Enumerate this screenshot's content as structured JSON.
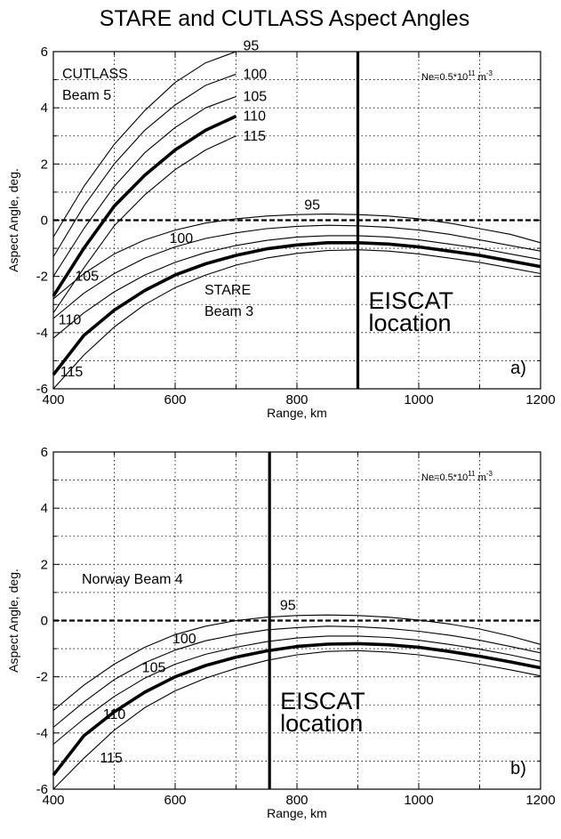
{
  "figure": {
    "title": "STARE and CUTLASS Aspect Angles"
  },
  "chart_data": [
    {
      "type": "line",
      "panel": "a)",
      "xlabel": "Range, km",
      "ylabel": "Aspect Angle, deg.",
      "xlim": [
        400,
        1200
      ],
      "ylim": [
        -6,
        6
      ],
      "xticks": [
        400,
        600,
        800,
        1000,
        1200
      ],
      "yticks": [
        -6,
        -4,
        -2,
        0,
        2,
        4,
        6
      ],
      "grid": true,
      "annotations": {
        "ne": "Ne=0.5*10",
        "ne_exp": "11",
        "ne_unit": "m",
        "ne_unit_exp": "-3",
        "beam_top_line1": "CUTLASS",
        "beam_top_line2": "Beam 5",
        "beam_bottom_line1": "STARE",
        "beam_bottom_line2": "Beam 3",
        "eiscat_line1": "EISCAT",
        "eiscat_line2": "location",
        "panel_label": "a)"
      },
      "eiscat_range": 900,
      "zero_line": 0,
      "series": [
        {
          "name": "95",
          "group": "cutlass",
          "x": [
            400,
            450,
            500,
            550,
            600,
            650,
            700
          ],
          "y": [
            -0.6,
            1.2,
            2.7,
            3.9,
            4.9,
            5.6,
            6.2
          ]
        },
        {
          "name": "100",
          "group": "cutlass",
          "x": [
            400,
            450,
            500,
            550,
            600,
            650,
            700
          ],
          "y": [
            -1.3,
            0.5,
            2.0,
            3.2,
            4.1,
            4.8,
            5.2
          ]
        },
        {
          "name": "105",
          "group": "cutlass",
          "x": [
            400,
            450,
            500,
            550,
            600,
            650,
            700
          ],
          "y": [
            -2.0,
            -0.3,
            1.2,
            2.4,
            3.3,
            4.0,
            4.4
          ]
        },
        {
          "name": "110",
          "group": "cutlass",
          "x": [
            400,
            450,
            500,
            550,
            600,
            650,
            700
          ],
          "y": [
            -2.7,
            -1.0,
            0.5,
            1.6,
            2.5,
            3.2,
            3.7
          ]
        },
        {
          "name": "115",
          "group": "cutlass",
          "x": [
            400,
            450,
            500,
            550,
            600,
            650,
            700
          ],
          "y": [
            -3.3,
            -1.7,
            -0.2,
            0.9,
            1.8,
            2.5,
            3.0
          ]
        },
        {
          "name": "95",
          "group": "stare",
          "x": [
            400,
            450,
            500,
            550,
            600,
            650,
            700,
            750,
            800,
            850,
            900,
            950,
            1000,
            1050,
            1100,
            1150,
            1200
          ],
          "y": [
            -2.8,
            -1.9,
            -1.2,
            -0.7,
            -0.35,
            -0.1,
            0.05,
            0.15,
            0.2,
            0.22,
            0.2,
            0.15,
            0.05,
            -0.1,
            -0.3,
            -0.5,
            -0.8
          ]
        },
        {
          "name": "100",
          "group": "stare",
          "x": [
            400,
            450,
            500,
            550,
            600,
            650,
            700,
            750,
            800,
            850,
            900,
            950,
            1000,
            1050,
            1100,
            1150,
            1200
          ],
          "y": [
            -3.5,
            -2.6,
            -1.9,
            -1.35,
            -0.95,
            -0.65,
            -0.45,
            -0.3,
            -0.22,
            -0.18,
            -0.2,
            -0.25,
            -0.35,
            -0.5,
            -0.7,
            -0.9,
            -1.1
          ]
        },
        {
          "name": "105",
          "group": "stare",
          "x": [
            400,
            450,
            500,
            550,
            600,
            650,
            700,
            750,
            800,
            850,
            900,
            950,
            1000,
            1050,
            1100,
            1150,
            1200
          ],
          "y": [
            -4.2,
            -3.3,
            -2.55,
            -1.95,
            -1.5,
            -1.15,
            -0.9,
            -0.72,
            -0.6,
            -0.55,
            -0.55,
            -0.6,
            -0.7,
            -0.85,
            -1.0,
            -1.2,
            -1.4
          ]
        },
        {
          "name": "110",
          "group": "stare",
          "x": [
            400,
            450,
            500,
            550,
            600,
            650,
            700,
            750,
            800,
            850,
            900,
            950,
            1000,
            1050,
            1100,
            1150,
            1200
          ],
          "y": [
            -5.5,
            -4.1,
            -3.2,
            -2.5,
            -1.95,
            -1.55,
            -1.25,
            -1.02,
            -0.88,
            -0.8,
            -0.8,
            -0.85,
            -0.95,
            -1.1,
            -1.25,
            -1.45,
            -1.65
          ]
        },
        {
          "name": "115",
          "group": "stare",
          "x": [
            400,
            450,
            500,
            550,
            600,
            650,
            700,
            750,
            800,
            850,
            900,
            950,
            1000,
            1050,
            1100,
            1150,
            1200
          ],
          "y": [
            -6.0,
            -4.8,
            -3.8,
            -3.0,
            -2.4,
            -1.95,
            -1.6,
            -1.35,
            -1.18,
            -1.08,
            -1.05,
            -1.1,
            -1.2,
            -1.35,
            -1.5,
            -1.7,
            -1.9
          ]
        }
      ]
    },
    {
      "type": "line",
      "panel": "b)",
      "xlabel": "Range, km",
      "ylabel": "Aspect Angle, deg.",
      "xlim": [
        400,
        1200
      ],
      "ylim": [
        -6,
        6
      ],
      "xticks": [
        400,
        600,
        800,
        1000,
        1200
      ],
      "yticks": [
        -6,
        -4,
        -2,
        0,
        2,
        4,
        6
      ],
      "grid": true,
      "annotations": {
        "ne": "Ne=0.5*10",
        "ne_exp": "11",
        "ne_unit": "m",
        "ne_unit_exp": "-3",
        "beam_line1": "Norway Beam 4",
        "eiscat_line1": "EISCAT",
        "eiscat_line2": "location",
        "panel_label": "b)"
      },
      "eiscat_range": 755,
      "zero_line": 0,
      "series": [
        {
          "name": "95",
          "x": [
            400,
            450,
            500,
            550,
            600,
            650,
            700,
            750,
            800,
            850,
            900,
            950,
            1000,
            1050,
            1100,
            1150,
            1200
          ],
          "y": [
            -3.2,
            -2.3,
            -1.55,
            -0.95,
            -0.5,
            -0.2,
            0.0,
            0.12,
            0.18,
            0.2,
            0.18,
            0.12,
            0.02,
            -0.12,
            -0.3,
            -0.55,
            -0.85
          ]
        },
        {
          "name": "100",
          "x": [
            400,
            450,
            500,
            550,
            600,
            650,
            700,
            750,
            800,
            850,
            900,
            950,
            1000,
            1050,
            1100,
            1150,
            1200
          ],
          "y": [
            -3.8,
            -2.9,
            -2.1,
            -1.5,
            -1.05,
            -0.72,
            -0.5,
            -0.33,
            -0.25,
            -0.2,
            -0.22,
            -0.28,
            -0.38,
            -0.52,
            -0.7,
            -0.92,
            -1.15
          ]
        },
        {
          "name": "105",
          "x": [
            400,
            450,
            500,
            550,
            600,
            650,
            700,
            750,
            800,
            850,
            900,
            950,
            1000,
            1050,
            1100,
            1150,
            1200
          ],
          "y": [
            -4.4,
            -3.5,
            -2.7,
            -2.05,
            -1.55,
            -1.2,
            -0.95,
            -0.75,
            -0.62,
            -0.55,
            -0.55,
            -0.6,
            -0.7,
            -0.85,
            -1.02,
            -1.22,
            -1.45
          ]
        },
        {
          "name": "110",
          "x": [
            400,
            450,
            500,
            550,
            600,
            650,
            700,
            750,
            800,
            850,
            900,
            950,
            1000,
            1050,
            1100,
            1150,
            1200
          ],
          "y": [
            -5.5,
            -4.1,
            -3.25,
            -2.55,
            -2.0,
            -1.6,
            -1.3,
            -1.08,
            -0.92,
            -0.84,
            -0.82,
            -0.86,
            -0.95,
            -1.1,
            -1.27,
            -1.47,
            -1.68
          ]
        },
        {
          "name": "115",
          "x": [
            400,
            450,
            500,
            550,
            600,
            650,
            700,
            750,
            800,
            850,
            900,
            950,
            1000,
            1050,
            1100,
            1150,
            1200
          ],
          "y": [
            -6.0,
            -4.9,
            -3.9,
            -3.1,
            -2.5,
            -2.05,
            -1.7,
            -1.42,
            -1.22,
            -1.1,
            -1.07,
            -1.12,
            -1.22,
            -1.37,
            -1.55,
            -1.75,
            -1.97
          ]
        }
      ]
    }
  ]
}
